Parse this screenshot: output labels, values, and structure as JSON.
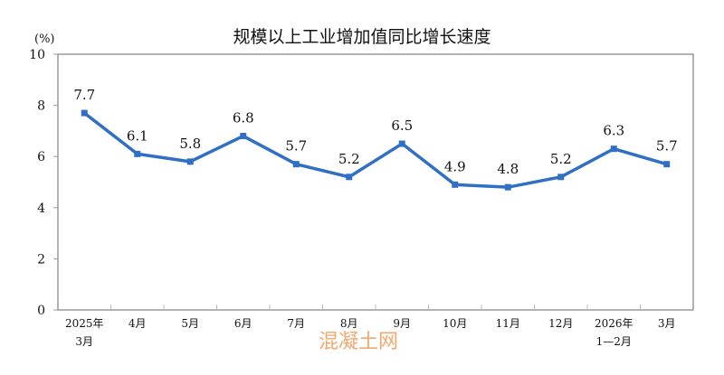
{
  "chart_data": {
    "type": "line",
    "title": "规模以上工业增加值同比增长速度",
    "ylabel": "(%)",
    "xlabel": "",
    "ylim": [
      0,
      10
    ],
    "yticks": [
      0,
      2,
      4,
      6,
      8,
      10
    ],
    "grid": false,
    "categories": [
      [
        "2025年",
        "3月"
      ],
      [
        "4月"
      ],
      [
        "5月"
      ],
      [
        "6月"
      ],
      [
        "7月"
      ],
      [
        "8月"
      ],
      [
        "9月"
      ],
      [
        "10月"
      ],
      [
        "11月"
      ],
      [
        "12月"
      ],
      [
        "2026年",
        "1—2月"
      ],
      [
        "3月"
      ]
    ],
    "series": [
      {
        "name": "规模以上工业增加值同比增长速度",
        "values": [
          7.7,
          6.1,
          5.8,
          6.8,
          5.7,
          5.2,
          6.5,
          4.9,
          4.8,
          5.2,
          6.3,
          5.7
        ],
        "color": "#2f6fc4"
      }
    ],
    "data_labels": [
      "7.7",
      "6.1",
      "5.8",
      "6.8",
      "5.7",
      "5.2",
      "6.5",
      "4.9",
      "4.8",
      "5.2",
      "6.3",
      "5.7"
    ]
  },
  "watermark": "混凝土网"
}
